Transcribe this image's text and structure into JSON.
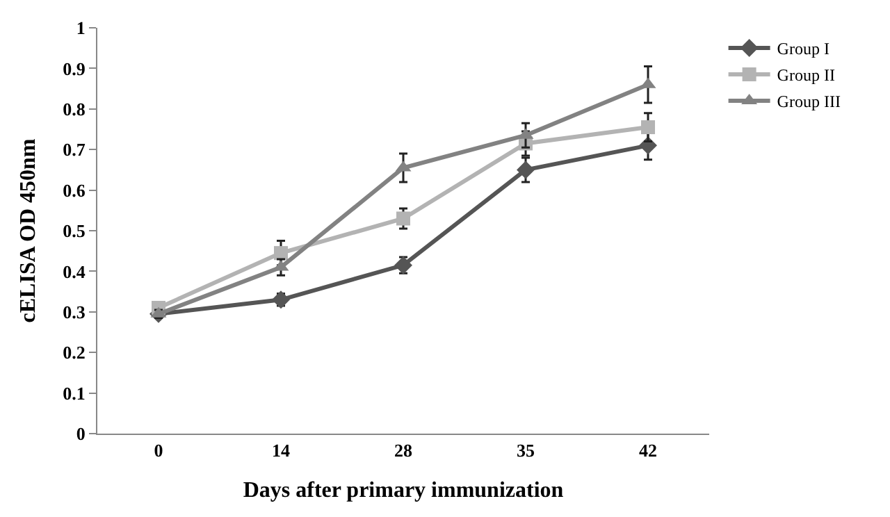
{
  "chart_data": {
    "type": "line",
    "xlabel": "Days after primary immunization",
    "ylabel": "cELISA OD 450nm",
    "categories": [
      "0",
      "14",
      "28",
      "35",
      "42"
    ],
    "series": [
      {
        "name": "Group I",
        "color": "#555555",
        "marker": "diamond",
        "values": [
          0.295,
          0.33,
          0.415,
          0.65,
          0.71
        ],
        "errors": [
          0.01,
          0.015,
          0.02,
          0.03,
          0.035
        ]
      },
      {
        "name": "Group II",
        "color": "#b3b3b3",
        "marker": "square",
        "values": [
          0.31,
          0.445,
          0.53,
          0.715,
          0.755
        ],
        "errors": [
          null,
          0.03,
          0.025,
          0.03,
          0.035
        ]
      },
      {
        "name": "Group III",
        "color": "#828282",
        "marker": "triangle",
        "values": [
          0.295,
          0.41,
          0.655,
          0.735,
          0.86
        ],
        "errors": [
          0.01,
          0.02,
          0.035,
          0.03,
          0.045
        ]
      }
    ],
    "ylim": [
      0,
      1
    ],
    "yticks": [
      0,
      0.1,
      0.2,
      0.3,
      0.4,
      0.5,
      0.6,
      0.7,
      0.8,
      0.9,
      1
    ],
    "legend": "top right",
    "line_style": "solid"
  }
}
